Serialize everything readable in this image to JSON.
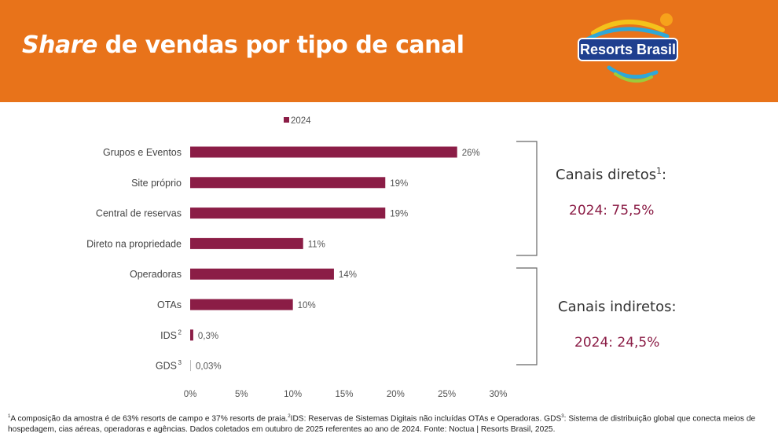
{
  "header": {
    "title_italic": "Share",
    "title_rest": " de vendas por tipo de canal",
    "logo_text": "Resorts Brasil",
    "bg_color": "#E8731A"
  },
  "chart_data": {
    "type": "bar",
    "orientation": "horizontal",
    "legend": [
      "2024"
    ],
    "legend_placement": "top",
    "bar_color": "#8B1D46",
    "categories": [
      "Grupos e Eventos",
      "Site próprio",
      "Central de reservas",
      "Direto na propriedade",
      "Operadoras",
      "OTAs",
      "IDS",
      "GDS"
    ],
    "category_superscripts": [
      "",
      "",
      "",
      "",
      "",
      "",
      "2",
      "3"
    ],
    "series": [
      {
        "name": "2024",
        "values": [
          26,
          19,
          19,
          11,
          14,
          10,
          0.3,
          0.03
        ],
        "data_labels": [
          "26%",
          "19%",
          "19%",
          "11%",
          "14%",
          "10%",
          "0,3%",
          "0,03%"
        ]
      }
    ],
    "xlim": [
      0,
      30
    ],
    "xticks": [
      "0%",
      "5%",
      "10%",
      "15%",
      "20%",
      "25%",
      "30%"
    ],
    "grid": false
  },
  "groups": {
    "direct": {
      "label": "Canais diretos",
      "sup": "1",
      "suffix": ":",
      "value": "2024: 75,5%"
    },
    "indirect": {
      "label": "Canais indiretos:",
      "value": "2024: 24,5%"
    }
  },
  "footnote": {
    "line1": "A composição da amostra é de 63% resorts de campo e 37% resorts de praia.",
    "line1_part2": "IDS: Reservas de Sistemas Digitais não incluídas OTAs e Operadoras. GDS",
    "line1_part3": ": Sistema de distribuição global que conecta meios de hospedagem, cias aéreas, operadoras e agências. Dados coletados em outubro de 2025 referentes ao ano de 2024. Fonte: Noctua | Resorts Brasil, 2025.",
    "sup1": "1",
    "sup2": "2",
    "sup3": "3"
  }
}
